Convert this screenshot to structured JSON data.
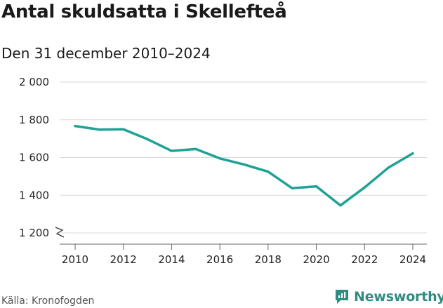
{
  "header": {
    "title": "Antal skuldsatta i Skellefteå",
    "subtitle": "Den 31 december 2010–2024"
  },
  "footer": {
    "source": "Källa: Kronofogden",
    "brand": "Newsworthy"
  },
  "colors": {
    "line": "#1fa295",
    "grid": "#d9d9d9",
    "axis": "#666666",
    "brand": "#2e8c82"
  },
  "chart_data": {
    "type": "line",
    "title": "Antal skuldsatta i Skellefteå",
    "subtitle": "Den 31 december 2010–2024",
    "x": [
      2010,
      2011,
      2012,
      2013,
      2014,
      2015,
      2016,
      2017,
      2018,
      2019,
      2020,
      2021,
      2022,
      2023,
      2024
    ],
    "series": [
      {
        "values": [
          1767,
          1748,
          1750,
          1697,
          1635,
          1645,
          1595,
          1563,
          1525,
          1437,
          1447,
          1346,
          1441,
          1547,
          1622
        ]
      }
    ],
    "xlim": [
      2010,
      2024
    ],
    "ylim": [
      1200,
      2000
    ],
    "x_ticks": [
      2010,
      2012,
      2014,
      2016,
      2018,
      2020,
      2022,
      2024
    ],
    "x_tick_labels": [
      "2010",
      "2012",
      "2014",
      "2016",
      "2018",
      "2020",
      "2022",
      "2024"
    ],
    "y_ticks": [
      1200,
      1400,
      1600,
      1800,
      2000
    ],
    "y_tick_labels": [
      "1 200",
      "1 400",
      "1 600",
      "1 800",
      "2 000"
    ],
    "grid": "horizontal",
    "axis_break": true
  }
}
